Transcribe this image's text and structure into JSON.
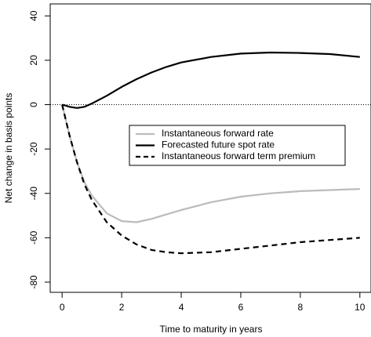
{
  "chart_data": {
    "type": "line",
    "x_label": "Time to maturity in years",
    "y_label": "Net change in basis points",
    "x": [
      0,
      0.25,
      0.5,
      0.75,
      1,
      1.5,
      2,
      2.5,
      3,
      3.5,
      4,
      5,
      6,
      7,
      8,
      9,
      10
    ],
    "series": [
      {
        "name": "Instantaneous forward rate",
        "color": "#bbbbbb",
        "dash": "solid",
        "values": [
          0,
          -14,
          -26,
          -35,
          -41,
          -49,
          -52.5,
          -53,
          -51.5,
          -49.5,
          -47.5,
          -44,
          -41.5,
          -40,
          -39,
          -38.5,
          -38
        ]
      },
      {
        "name": "Forecasted future spot rate",
        "color": "#000000",
        "dash": "solid",
        "values": [
          0,
          -1,
          -1.5,
          -1,
          0.5,
          4,
          8,
          11.5,
          14.5,
          17,
          19,
          21.5,
          23,
          23.5,
          23.3,
          22.8,
          21.5
        ]
      },
      {
        "name": "Instantaneous forward term premium",
        "color": "#000000",
        "dash": "dashed",
        "values": [
          0,
          -14,
          -26,
          -36,
          -43,
          -53,
          -59,
          -63,
          -65.5,
          -66.5,
          -67,
          -66.5,
          -65,
          -63.5,
          -62,
          -61,
          -60
        ]
      }
    ],
    "reference_line": 0,
    "xlim": [
      -0.4,
      10.4
    ],
    "ylim": [
      -84.6,
      45.4
    ],
    "xticks": [
      0,
      2,
      4,
      6,
      8,
      10
    ],
    "yticks": [
      -80,
      -60,
      -40,
      -20,
      0,
      20,
      40
    ],
    "legend": "center-right"
  }
}
